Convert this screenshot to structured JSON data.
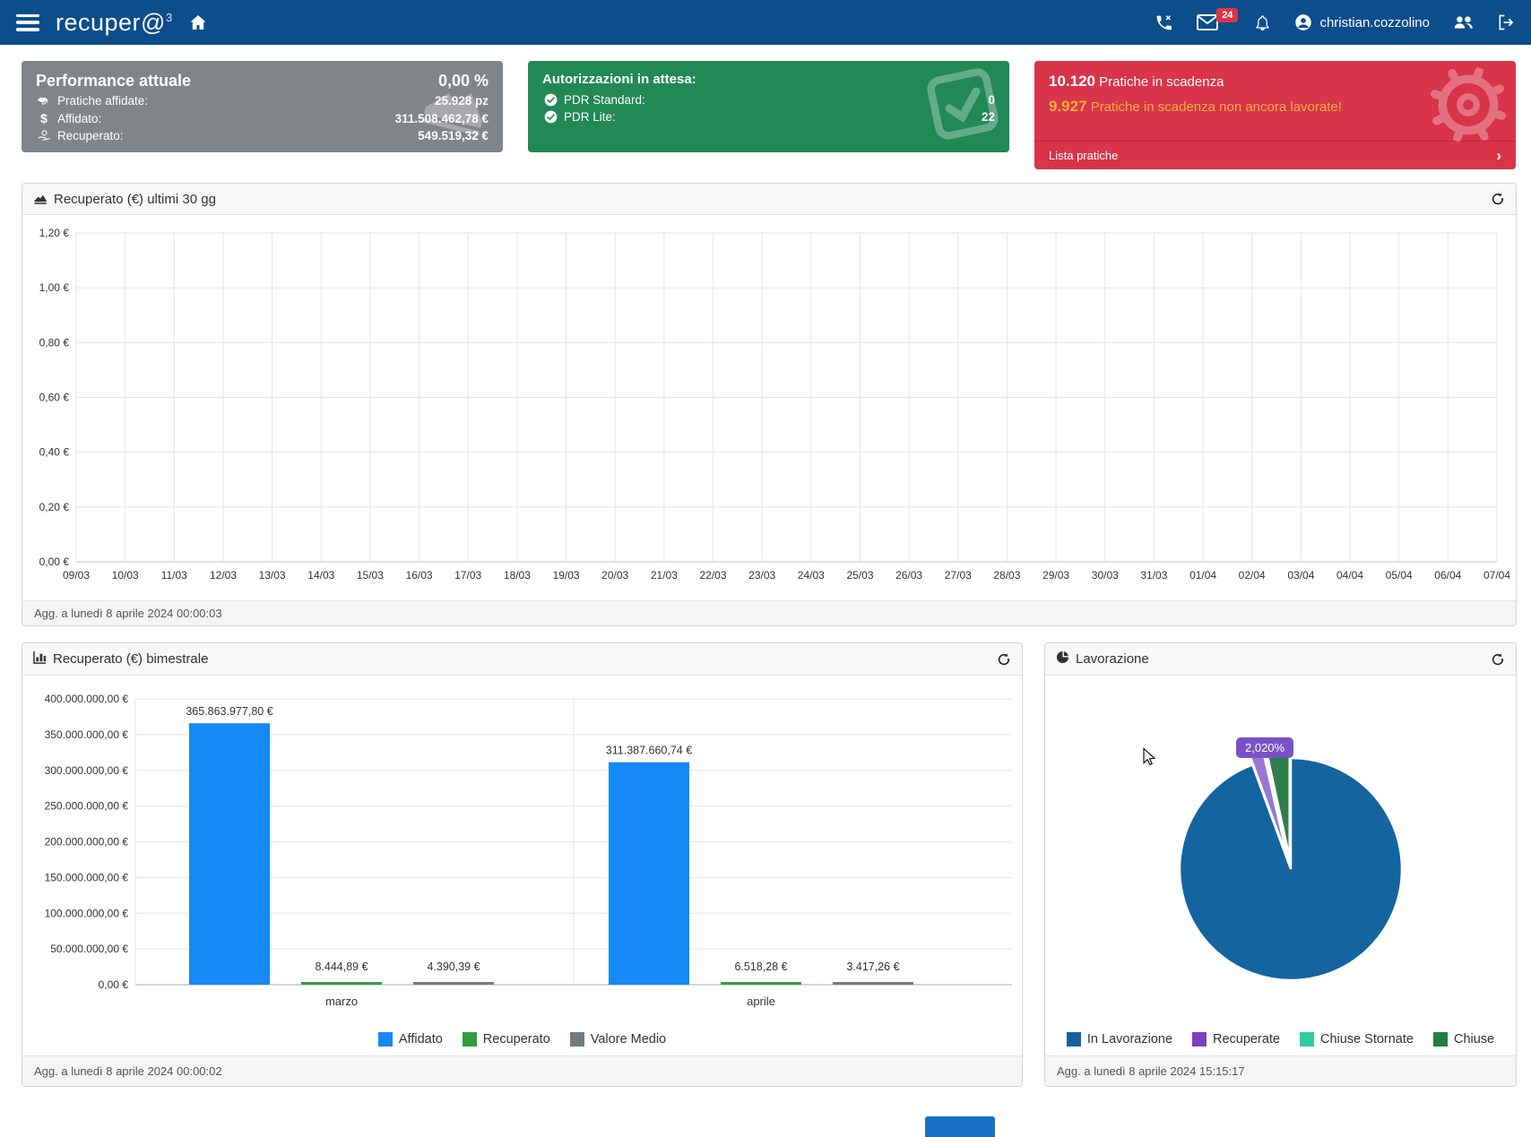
{
  "navbar": {
    "brand": "recuper@",
    "brand_sup": "3",
    "mail_badge": "24",
    "user": "christian.cozzolino"
  },
  "icons": {
    "chevron_right": "›"
  },
  "cards": {
    "performance": {
      "title": "Performance attuale",
      "value": "0,00 %",
      "rows": [
        {
          "icon": "handshake-icon",
          "label": "Pratiche affidate:",
          "value": "25.928 pz"
        },
        {
          "icon": "dollar-icon",
          "label": "Affidato:",
          "value": "311.508.462,78 €"
        },
        {
          "icon": "hand-euro-icon",
          "label": "Recuperato:",
          "value": "549.519,32 €"
        }
      ],
      "bg": "#808589"
    },
    "authorizations": {
      "title": "Autorizzazioni in attesa:",
      "rows": [
        {
          "icon": "check-circle-icon",
          "label": "PDR Standard:",
          "value": "0"
        },
        {
          "icon": "check-circle-icon",
          "label": "PDR Lite:",
          "value": "22"
        }
      ],
      "bg": "#218856"
    },
    "deadlines": {
      "count": "10.120",
      "count_label": "Pratiche in scadenza",
      "warn_count": "9.927",
      "warn_label": "Pratiche in scadenza non ancora lavorate!",
      "footer_link": "Lista pratiche",
      "bg": "#d9344a",
      "warn_color": "#f0ae3c"
    }
  },
  "line_panel": {
    "title": "Recuperato (€) ultimi 30 gg",
    "updated": "Agg. a lunedì 8 aprile 2024 00:00:03"
  },
  "bar_panel": {
    "title": "Recuperato (€) bimestrale",
    "updated": "Agg. a lunedì 8 aprile 2024 00:00:02"
  },
  "pie_panel": {
    "title": "Lavorazione",
    "tooltip": "2,020%",
    "updated": "Agg. a lunedì 8 aprile 2024 15:15:17"
  },
  "chart_data": [
    {
      "type": "line",
      "title": "Recuperato (€) ultimi 30 gg",
      "x": [
        "09/03",
        "10/03",
        "11/03",
        "12/03",
        "13/03",
        "14/03",
        "15/03",
        "16/03",
        "17/03",
        "18/03",
        "19/03",
        "20/03",
        "21/03",
        "22/03",
        "23/03",
        "24/03",
        "25/03",
        "26/03",
        "27/03",
        "28/03",
        "29/03",
        "30/03",
        "31/03",
        "01/04",
        "02/04",
        "03/04",
        "04/04",
        "05/04",
        "06/04",
        "07/04"
      ],
      "series": [],
      "ylim": [
        0,
        1.2
      ],
      "yticks": [
        "0,00 €",
        "0,20 €",
        "0,40 €",
        "0,60 €",
        "0,80 €",
        "1,00 €",
        "1,20 €"
      ],
      "grid": true,
      "legend_position": "none",
      "note": "chart area is empty - no data plotted"
    },
    {
      "type": "bar",
      "title": "Recuperato (€) bimestrale",
      "categories": [
        "marzo",
        "aprile"
      ],
      "series": [
        {
          "name": "Affidato",
          "color": "#1589f5",
          "values": [
            365863977.8,
            311387660.74
          ],
          "labels": [
            "365.863.977,80 €",
            "311.387.660,74 €"
          ]
        },
        {
          "name": "Recuperato",
          "color": "#2f9e41",
          "values": [
            8444.89,
            6518.28
          ],
          "labels": [
            "8.444,89 €",
            "6.518,28 €"
          ]
        },
        {
          "name": "Valore Medio",
          "color": "#737a80",
          "values": [
            4390.39,
            3417.26
          ],
          "labels": [
            "4.390,39 €",
            "3.417,26 €"
          ]
        }
      ],
      "ylim": [
        0,
        400000000
      ],
      "yticks": [
        "0,00 €",
        "50.000.000,00 €",
        "100.000.000,00 €",
        "150.000.000,00 €",
        "200.000.000,00 €",
        "250.000.000,00 €",
        "300.000.000,00 €",
        "350.000.000,00 €",
        "400.000.000,00 €"
      ],
      "grid": true,
      "legend_position": "bottom"
    },
    {
      "type": "pie",
      "title": "Lavorazione",
      "slices": [
        {
          "name": "In Lavorazione",
          "value": 94.4,
          "color": "#1464a0",
          "legend_color": "#15619e",
          "estimated": true
        },
        {
          "name": "Recuperate",
          "value": 2.02,
          "color": "#9878d2",
          "legend_color": "#7c3fc0",
          "label": "2,020%"
        },
        {
          "name": "Chiuse Stornate",
          "value": 0.2,
          "color": "#2ecc9c",
          "legend_color": "#2ecc9c",
          "estimated": true
        },
        {
          "name": "Chiuse",
          "value": 3.38,
          "color": "#2f7e4e",
          "legend_color": "#1f7f41",
          "estimated": true
        }
      ],
      "legend_position": "bottom"
    }
  ]
}
